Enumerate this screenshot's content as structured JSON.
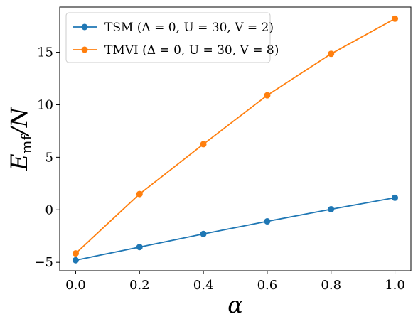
{
  "chart_data": {
    "type": "line",
    "title": "",
    "xlabel": "α",
    "ylabel": "E_mf/N",
    "ylabel_main": "E",
    "ylabel_sub": "mf",
    "ylabel_tail": "/N",
    "xlim": [
      -0.05,
      1.05
    ],
    "ylim": [
      -5.8,
      19.3
    ],
    "xticks": [
      0.0,
      0.2,
      0.4,
      0.6,
      0.8,
      1.0
    ],
    "xtick_labels": [
      "0.0",
      "0.2",
      "0.4",
      "0.6",
      "0.8",
      "1.0"
    ],
    "yticks": [
      -5,
      0,
      5,
      10,
      15
    ],
    "ytick_labels": [
      "−5",
      "0",
      "5",
      "10",
      "15"
    ],
    "grid": false,
    "legend_position": "top-left",
    "x": [
      0.0,
      0.2,
      0.4,
      0.6,
      0.8,
      1.0
    ],
    "series": [
      {
        "name": "TSM  (Δ = 0, U = 30, V = 2)",
        "color": "#1f77b4",
        "values": [
          -4.8,
          -3.55,
          -2.3,
          -1.1,
          0.05,
          1.15
        ]
      },
      {
        "name": "TMVI (Δ = 0, U = 30, V = 8)",
        "color": "#ff7f0e",
        "values": [
          -4.15,
          1.5,
          6.25,
          10.9,
          14.85,
          18.2
        ]
      }
    ]
  }
}
